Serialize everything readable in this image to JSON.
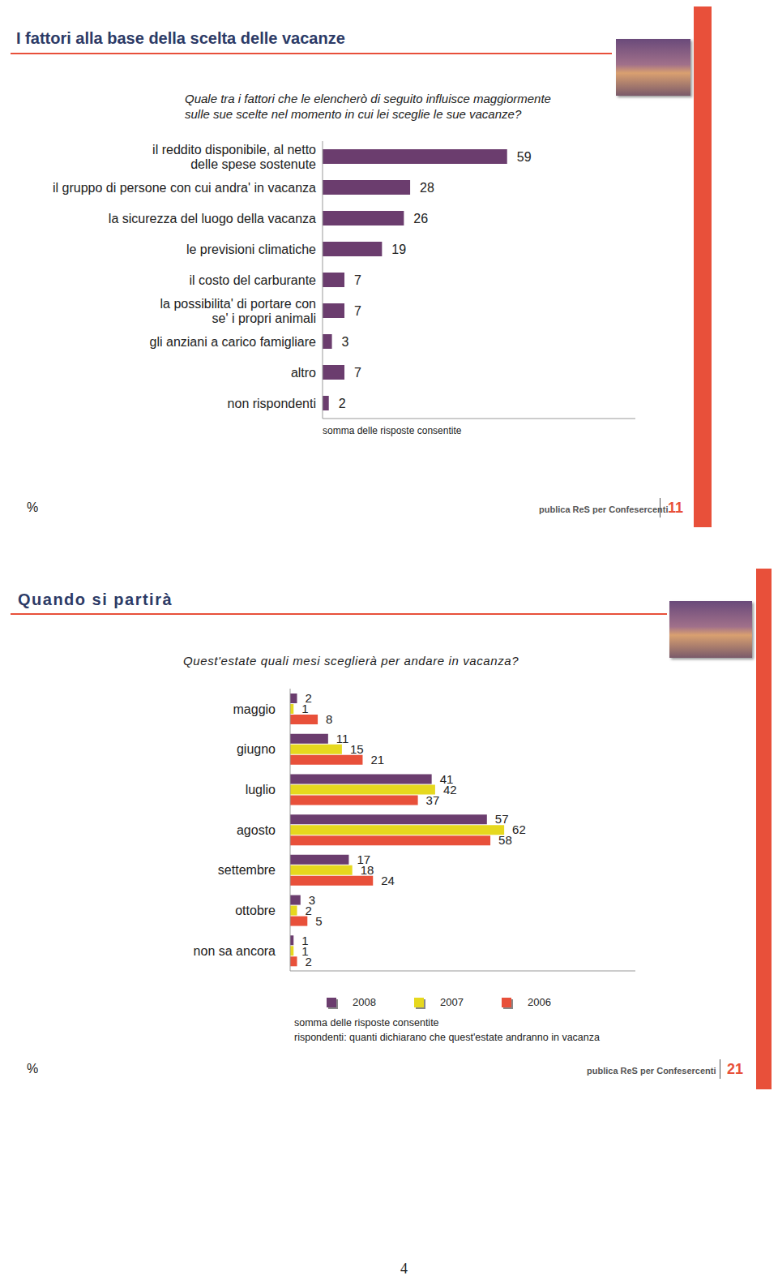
{
  "chart_data": [
    {
      "type": "bar",
      "orientation": "horizontal",
      "title": "I fattori alla base della scelta delle vacanze",
      "subtitle": "Quale tra i fattori che le elencherò di seguito influisce maggiormente sulle sue scelte nel momento in cui lei sceglie le sue vacanze?",
      "categories": [
        "il reddito disponibile, al netto delle spese sostenute",
        "il gruppo di persone con cui andra' in vacanza",
        "la sicurezza del luogo della vacanza",
        "le previsioni climatiche",
        "il costo del carburante",
        "la possibilita' di portare con se' i propri animali",
        "gli anziani a carico famigliare",
        "altro",
        "non rispondenti"
      ],
      "values": [
        59,
        28,
        26,
        19,
        7,
        7,
        3,
        7,
        2
      ],
      "color": "#6b3d6e",
      "xlim": [
        0,
        100
      ],
      "xticks": [],
      "data_labels": true,
      "tick_labels": "y",
      "annotations": [
        "somma delle risposte consentite",
        "%"
      ],
      "footer": "publica ReS per Confesercenti",
      "page": 11
    },
    {
      "type": "bar",
      "orientation": "horizontal",
      "title": "Quando si partirà",
      "subtitle": "Quest'estate quali mesi sceglierà per andare in vacanza?",
      "categories": [
        "maggio",
        "giugno",
        "luglio",
        "agosto",
        "settembre",
        "ottobre",
        "non sa ancora"
      ],
      "series": [
        {
          "name": "2008",
          "color": "#6b3d6e",
          "values": [
            2,
            11,
            41,
            57,
            17,
            3,
            1
          ]
        },
        {
          "name": "2007",
          "color": "#e6d81e",
          "values": [
            1,
            15,
            42,
            62,
            18,
            2,
            1
          ]
        },
        {
          "name": "2006",
          "color": "#e8503a",
          "values": [
            8,
            21,
            37,
            58,
            24,
            5,
            2
          ]
        }
      ],
      "xlim": [
        0,
        100
      ],
      "xticks": [],
      "data_labels": true,
      "tick_labels": "y",
      "legend": "bottom",
      "annotations": [
        "somma delle risposte consentite",
        "rispondenti: quanti dichiarano che quest'estate andranno in vacanza",
        "%"
      ],
      "footer": "publica ReS per Confesercenti",
      "page": 21
    }
  ],
  "page_number": 4
}
